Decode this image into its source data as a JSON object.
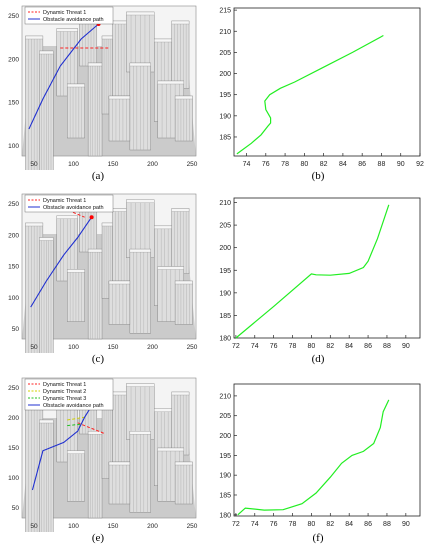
{
  "panel_labels": [
    "(a)",
    "(b)",
    "(c)",
    "(d)",
    "(e)",
    "(f)"
  ],
  "legends": {
    "a": [
      "Dynamic Threat 1",
      "Obstacle avoidance path"
    ],
    "c": [
      "Dynamic Threat 1",
      "Obstacle avoidance path"
    ],
    "e": [
      "Dynamic Threat 1",
      "Dynamic Threat 2",
      "Dynamic Threat 3",
      "Obstacle avoidance path"
    ]
  },
  "colors": {
    "threat1": "#ff2020",
    "threat2": "#d0d000",
    "threat3": "#20c020",
    "path": "#2030d0",
    "curve": "#22ee22",
    "building": "#d8d8d8"
  },
  "chart_data": [
    {
      "type": "line",
      "id": "b",
      "x": [
        73.0,
        74.5,
        75.5,
        76.2,
        76.5,
        76.5,
        76.0,
        75.9,
        76.4,
        77.5,
        79.0,
        82.0,
        85.0,
        88.2
      ],
      "y": [
        181.0,
        183.5,
        185.5,
        187.5,
        188.3,
        189.5,
        191.5,
        193.5,
        195.0,
        196.5,
        198.0,
        201.5,
        205.0,
        209.0
      ],
      "xlim": [
        72.7,
        92.0
      ],
      "ylim": [
        180.5,
        215.5
      ],
      "xticks": [
        74,
        76,
        78,
        80,
        82,
        84,
        86,
        88,
        90,
        92
      ],
      "yticks": [
        185,
        190,
        195,
        200,
        205,
        210,
        215
      ]
    },
    {
      "type": "line",
      "id": "d",
      "x": [
        72.0,
        76.0,
        80.0,
        80.5,
        82.0,
        84.0,
        85.5,
        86.0,
        87.0,
        88.2
      ],
      "y": [
        180.0,
        187.0,
        194.2,
        194.0,
        193.9,
        194.3,
        195.6,
        197.0,
        202.0,
        209.5
      ],
      "xlim": [
        71.8,
        91.5
      ],
      "ylim": [
        180.0,
        211.0
      ],
      "xticks": [
        72,
        74,
        76,
        78,
        80,
        82,
        84,
        86,
        88,
        90
      ],
      "yticks": [
        180,
        185,
        190,
        195,
        200,
        205,
        210
      ]
    },
    {
      "type": "line",
      "id": "f",
      "x": [
        72.2,
        73.0,
        75.0,
        77.0,
        79.0,
        80.5,
        82.0,
        83.2,
        84.3,
        85.5,
        86.6,
        87.3,
        87.6,
        88.2
      ],
      "y": [
        180.0,
        181.7,
        181.2,
        181.3,
        182.8,
        185.5,
        189.5,
        193.0,
        195.0,
        196.0,
        198.0,
        202.0,
        206.0,
        209.0
      ],
      "xlim": [
        71.8,
        91.5
      ],
      "ylim": [
        179.7,
        213.0
      ],
      "xticks": [
        72,
        74,
        76,
        78,
        80,
        82,
        84,
        86,
        88,
        90
      ],
      "yticks": [
        180,
        185,
        190,
        195,
        200,
        205,
        210
      ]
    }
  ]
}
